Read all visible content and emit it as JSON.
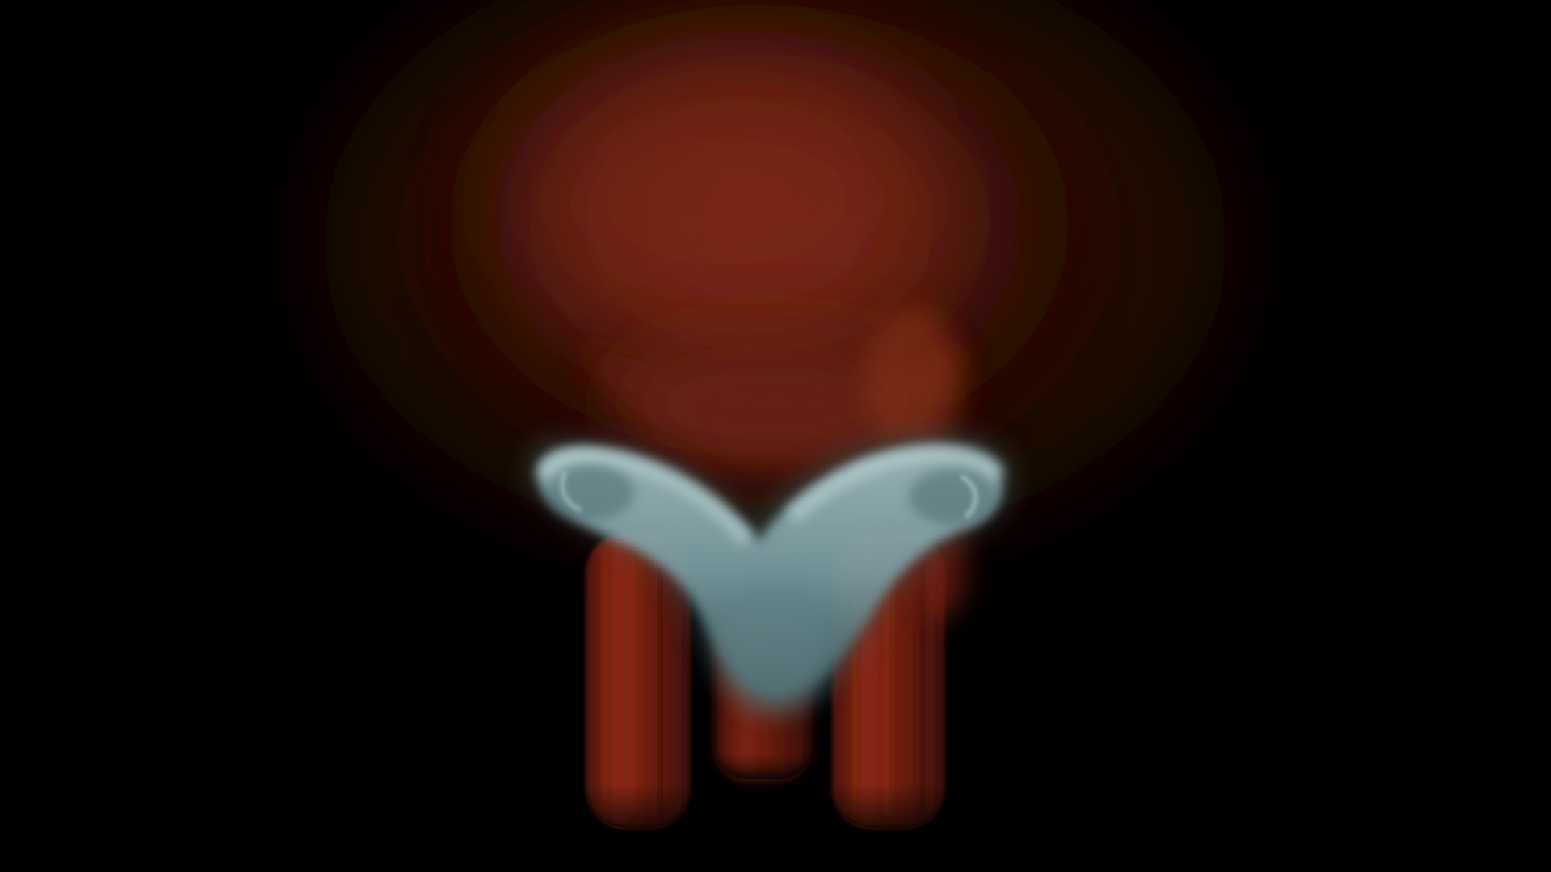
{
  "scene": {
    "description_visible_text": "",
    "colors": {
      "background": "#000000",
      "smoke_red_core": "#7a2818",
      "smoke_red_mid": "#5a1c10",
      "smoke_red_edge": "#2a0c06",
      "column_red": "#8a2814",
      "column_red_dark": "#4a1208",
      "cap_teal": "#7fa3a8",
      "cap_teal_light": "#a9c6c9",
      "cap_teal_dark": "#3d5a5f"
    },
    "elements": [
      "smoke-plume",
      "left-column",
      "center-column",
      "right-column",
      "teal-vortex-cap"
    ]
  }
}
